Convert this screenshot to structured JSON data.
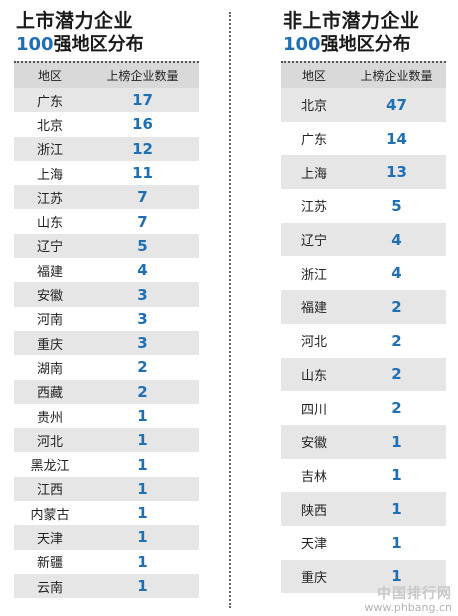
{
  "left": {
    "title_line1": "上市潜力企业",
    "title_num": "100",
    "title_rest": "强地区分布",
    "header": {
      "region": "地区",
      "count": "上榜企业数量"
    },
    "rows": [
      {
        "region": "广东",
        "count": "17"
      },
      {
        "region": "北京",
        "count": "16"
      },
      {
        "region": "浙江",
        "count": "12"
      },
      {
        "region": "上海",
        "count": "11"
      },
      {
        "region": "江苏",
        "count": "7"
      },
      {
        "region": "山东",
        "count": "7"
      },
      {
        "region": "辽宁",
        "count": "5"
      },
      {
        "region": "福建",
        "count": "4"
      },
      {
        "region": "安徽",
        "count": "3"
      },
      {
        "region": "河南",
        "count": "3"
      },
      {
        "region": "重庆",
        "count": "3"
      },
      {
        "region": "湖南",
        "count": "2"
      },
      {
        "region": "西藏",
        "count": "2"
      },
      {
        "region": "贵州",
        "count": "1"
      },
      {
        "region": "河北",
        "count": "1"
      },
      {
        "region": "黑龙江",
        "count": "1"
      },
      {
        "region": "江西",
        "count": "1"
      },
      {
        "region": "内蒙古",
        "count": "1"
      },
      {
        "region": "天津",
        "count": "1"
      },
      {
        "region": "新疆",
        "count": "1"
      },
      {
        "region": "云南",
        "count": "1"
      }
    ]
  },
  "right": {
    "title_line1": "非上市潜力企业",
    "title_num": "100",
    "title_rest": "强地区分布",
    "header": {
      "region": "地区",
      "count": "上榜企业数量"
    },
    "rows": [
      {
        "region": "北京",
        "count": "47"
      },
      {
        "region": "广东",
        "count": "14"
      },
      {
        "region": "上海",
        "count": "13"
      },
      {
        "region": "江苏",
        "count": "5"
      },
      {
        "region": "辽宁",
        "count": "4"
      },
      {
        "region": "浙江",
        "count": "4"
      },
      {
        "region": "福建",
        "count": "2"
      },
      {
        "region": "河北",
        "count": "2"
      },
      {
        "region": "山东",
        "count": "2"
      },
      {
        "region": "四川",
        "count": "2"
      },
      {
        "region": "安徽",
        "count": "1"
      },
      {
        "region": "吉林",
        "count": "1"
      },
      {
        "region": "陕西",
        "count": "1"
      },
      {
        "region": "天津",
        "count": "1"
      },
      {
        "region": "重庆",
        "count": "1"
      }
    ]
  },
  "watermark": {
    "line1": "中国排行网",
    "line2": "www.phbang.cn"
  }
}
